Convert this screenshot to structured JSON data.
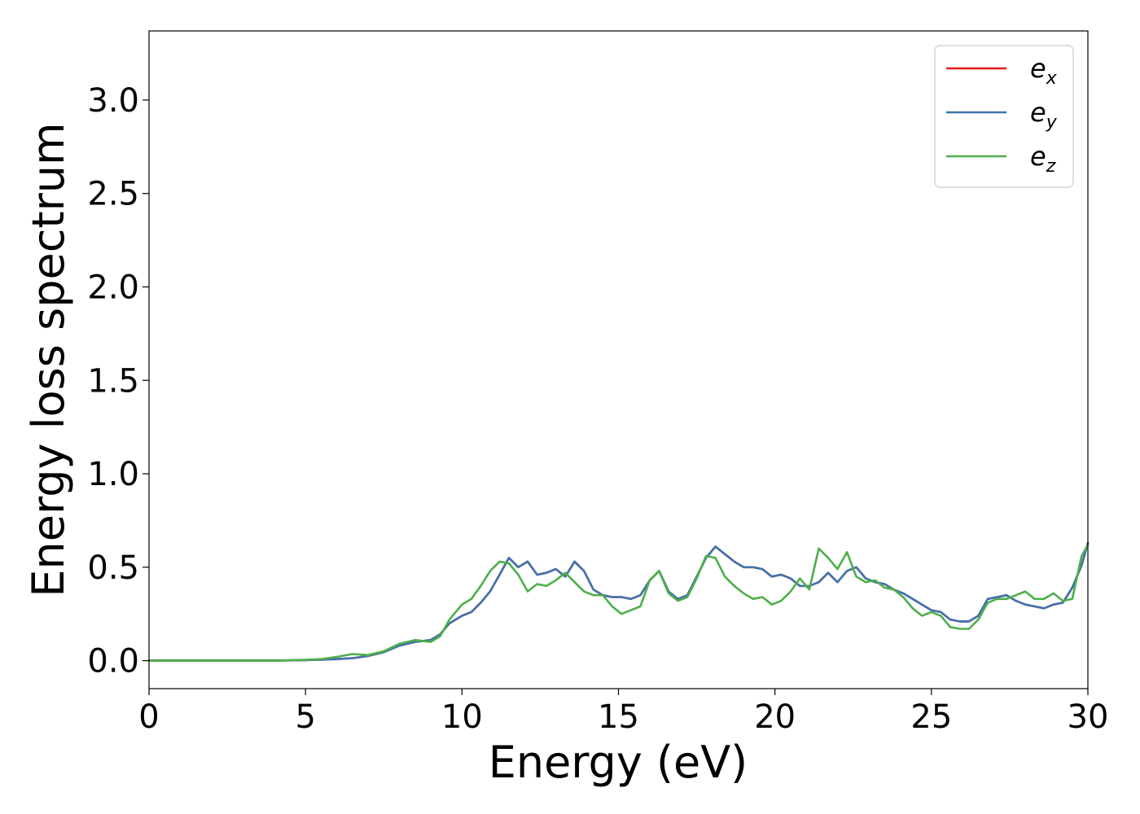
{
  "chart_data": {
    "type": "line",
    "title": "",
    "xlabel": "Energy (eV)",
    "ylabel": "Energy loss spectrum",
    "xlim": [
      0,
      30
    ],
    "ylim": [
      -0.15,
      3.37
    ],
    "xticks": [
      "0",
      "5",
      "10",
      "15",
      "20",
      "25",
      "30"
    ],
    "yticks": [
      "0.0",
      "0.5",
      "1.0",
      "1.5",
      "2.0",
      "2.5",
      "3.0"
    ],
    "grid": false,
    "legend_position": "top-right",
    "series": [
      {
        "name": "e_x",
        "base": "e",
        "sub": "x",
        "color": "#e41a1c",
        "x": [
          0,
          1,
          2,
          3,
          4,
          5,
          5.5,
          6,
          6.5,
          7,
          7.5,
          8,
          8.5,
          9,
          9.3,
          9.6,
          10,
          10.3,
          10.6,
          10.9,
          11.2,
          11.5,
          11.8,
          12.1,
          12.4,
          12.7,
          13,
          13.3,
          13.6,
          13.9,
          14.2,
          14.5,
          14.8,
          15.1,
          15.4,
          15.7,
          16,
          16.3,
          16.6,
          16.9,
          17.2,
          17.5,
          17.8,
          18.1,
          18.4,
          18.7,
          19,
          19.3,
          19.6,
          19.9,
          20.2,
          20.5,
          20.8,
          21.1,
          21.4,
          21.7,
          22,
          22.3,
          22.6,
          22.9,
          23.2,
          23.5,
          23.8,
          24.1,
          24.4,
          24.7,
          25,
          25.3,
          25.6,
          25.9,
          26.2,
          26.5,
          26.8,
          27.1,
          27.4,
          27.7,
          28,
          28.3,
          28.6,
          28.9,
          29.2,
          29.5,
          29.8,
          30
        ],
        "y": [
          0,
          0,
          0,
          0,
          0,
          0.003,
          0.005,
          0.008,
          0.013,
          0.025,
          0.045,
          0.08,
          0.1,
          0.11,
          0.14,
          0.2,
          0.24,
          0.26,
          0.31,
          0.37,
          0.46,
          0.55,
          0.5,
          0.53,
          0.46,
          0.47,
          0.49,
          0.45,
          0.53,
          0.48,
          0.38,
          0.35,
          0.34,
          0.34,
          0.33,
          0.35,
          0.43,
          0.48,
          0.37,
          0.33,
          0.35,
          0.45,
          0.55,
          0.61,
          0.57,
          0.53,
          0.5,
          0.5,
          0.49,
          0.45,
          0.46,
          0.44,
          0.4,
          0.4,
          0.42,
          0.47,
          0.42,
          0.48,
          0.5,
          0.44,
          0.42,
          0.41,
          0.38,
          0.36,
          0.33,
          0.3,
          0.27,
          0.26,
          0.22,
          0.21,
          0.21,
          0.24,
          0.33,
          0.34,
          0.35,
          0.32,
          0.3,
          0.29,
          0.28,
          0.3,
          0.31,
          0.39,
          0.51,
          0.63
        ]
      },
      {
        "name": "e_y",
        "base": "e",
        "sub": "y",
        "color": "#3f74ae",
        "x": [
          0,
          1,
          2,
          3,
          4,
          5,
          5.5,
          6,
          6.5,
          7,
          7.5,
          8,
          8.5,
          9,
          9.3,
          9.6,
          10,
          10.3,
          10.6,
          10.9,
          11.2,
          11.5,
          11.8,
          12.1,
          12.4,
          12.7,
          13,
          13.3,
          13.6,
          13.9,
          14.2,
          14.5,
          14.8,
          15.1,
          15.4,
          15.7,
          16,
          16.3,
          16.6,
          16.9,
          17.2,
          17.5,
          17.8,
          18.1,
          18.4,
          18.7,
          19,
          19.3,
          19.6,
          19.9,
          20.2,
          20.5,
          20.8,
          21.1,
          21.4,
          21.7,
          22,
          22.3,
          22.6,
          22.9,
          23.2,
          23.5,
          23.8,
          24.1,
          24.4,
          24.7,
          25,
          25.3,
          25.6,
          25.9,
          26.2,
          26.5,
          26.8,
          27.1,
          27.4,
          27.7,
          28,
          28.3,
          28.6,
          28.9,
          29.2,
          29.5,
          29.8,
          30
        ],
        "y": [
          0,
          0,
          0,
          0,
          0,
          0.003,
          0.005,
          0.008,
          0.013,
          0.025,
          0.045,
          0.08,
          0.1,
          0.11,
          0.14,
          0.2,
          0.24,
          0.26,
          0.31,
          0.37,
          0.46,
          0.55,
          0.5,
          0.53,
          0.46,
          0.47,
          0.49,
          0.45,
          0.53,
          0.48,
          0.38,
          0.35,
          0.34,
          0.34,
          0.33,
          0.35,
          0.43,
          0.48,
          0.37,
          0.33,
          0.35,
          0.45,
          0.55,
          0.61,
          0.57,
          0.53,
          0.5,
          0.5,
          0.49,
          0.45,
          0.46,
          0.44,
          0.4,
          0.4,
          0.42,
          0.47,
          0.42,
          0.48,
          0.5,
          0.44,
          0.42,
          0.41,
          0.38,
          0.36,
          0.33,
          0.3,
          0.27,
          0.26,
          0.22,
          0.21,
          0.21,
          0.24,
          0.33,
          0.34,
          0.35,
          0.32,
          0.3,
          0.29,
          0.28,
          0.3,
          0.31,
          0.39,
          0.51,
          0.63
        ]
      },
      {
        "name": "e_z",
        "base": "e",
        "sub": "z",
        "color": "#4daf4a",
        "x": [
          0,
          1,
          2,
          3,
          4,
          5,
          5.5,
          6,
          6.5,
          7,
          7.5,
          8,
          8.5,
          9,
          9.3,
          9.6,
          10,
          10.3,
          10.6,
          10.9,
          11.2,
          11.5,
          11.8,
          12.1,
          12.4,
          12.7,
          13,
          13.3,
          13.6,
          13.9,
          14.2,
          14.5,
          14.8,
          15.1,
          15.4,
          15.7,
          16,
          16.3,
          16.6,
          16.9,
          17.2,
          17.5,
          17.8,
          18.1,
          18.4,
          18.7,
          19,
          19.3,
          19.6,
          19.9,
          20.2,
          20.5,
          20.8,
          21.1,
          21.4,
          21.7,
          22,
          22.3,
          22.6,
          22.9,
          23.2,
          23.5,
          23.8,
          24.1,
          24.4,
          24.7,
          25,
          25.3,
          25.6,
          25.9,
          26.2,
          26.5,
          26.8,
          27.1,
          27.4,
          27.7,
          28,
          28.3,
          28.6,
          28.9,
          29.2,
          29.5,
          29.8,
          30
        ],
        "y": [
          0,
          0,
          0,
          0,
          0,
          0.004,
          0.008,
          0.02,
          0.035,
          0.03,
          0.05,
          0.09,
          0.11,
          0.1,
          0.13,
          0.22,
          0.3,
          0.33,
          0.4,
          0.48,
          0.53,
          0.52,
          0.46,
          0.37,
          0.41,
          0.4,
          0.43,
          0.47,
          0.42,
          0.37,
          0.35,
          0.35,
          0.29,
          0.25,
          0.27,
          0.29,
          0.43,
          0.48,
          0.36,
          0.32,
          0.34,
          0.44,
          0.56,
          0.55,
          0.45,
          0.4,
          0.36,
          0.33,
          0.34,
          0.3,
          0.32,
          0.37,
          0.44,
          0.38,
          0.6,
          0.55,
          0.49,
          0.58,
          0.45,
          0.42,
          0.43,
          0.39,
          0.38,
          0.34,
          0.28,
          0.24,
          0.26,
          0.24,
          0.18,
          0.17,
          0.17,
          0.22,
          0.31,
          0.33,
          0.33,
          0.35,
          0.37,
          0.33,
          0.33,
          0.36,
          0.32,
          0.33,
          0.56,
          0.62
        ]
      }
    ]
  }
}
